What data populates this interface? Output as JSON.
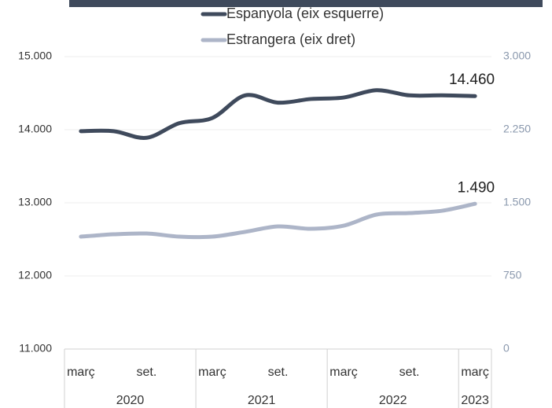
{
  "chart_data": {
    "type": "line",
    "categories": [
      "març",
      null,
      "set.",
      null,
      "març",
      null,
      "set.",
      null,
      "març",
      null,
      "set.",
      null,
      "març"
    ],
    "year_groups": [
      {
        "label": "2020",
        "span": 4
      },
      {
        "label": "2021",
        "span": 4
      },
      {
        "label": "2022",
        "span": 4
      },
      {
        "label": "2023",
        "span": 1
      }
    ],
    "series": [
      {
        "name": "Espanyola (eix esquerre)",
        "color": "#3f4a5c",
        "axis": "y",
        "values": [
          13980,
          13980,
          13890,
          14090,
          14160,
          14470,
          14370,
          14420,
          14440,
          14540,
          14470,
          14470,
          14460
        ],
        "value_labels": [
          null,
          null,
          null,
          null,
          null,
          null,
          null,
          null,
          null,
          null,
          null,
          null,
          "14.460"
        ]
      },
      {
        "name": "Estrangera (eix dret)",
        "color": "#adb5c8",
        "axis": "y2",
        "values": [
          1153,
          1177,
          1185,
          1153,
          1153,
          1202,
          1258,
          1234,
          1266,
          1379,
          1395,
          1419,
          1490
        ],
        "value_labels": [
          null,
          null,
          null,
          null,
          null,
          null,
          null,
          null,
          null,
          null,
          null,
          null,
          "1.490"
        ]
      }
    ],
    "ylim": [
      11000,
      15000
    ],
    "yticks": [
      {
        "value": 11000,
        "label": "11.000"
      },
      {
        "value": 12000,
        "label": "12.000"
      },
      {
        "value": 13000,
        "label": "13.000"
      },
      {
        "value": 14000,
        "label": "14.000"
      },
      {
        "value": 15000,
        "label": "15.000"
      }
    ],
    "y2lim": [
      0,
      3000
    ],
    "y2ticks": [
      0,
      750,
      {
        "value": 1500,
        "label": "1.500"
      },
      {
        "value": 2250,
        "label": "2.250"
      },
      {
        "value": 3000,
        "label": "3.000"
      }
    ],
    "grid": true,
    "legend": "top"
  }
}
